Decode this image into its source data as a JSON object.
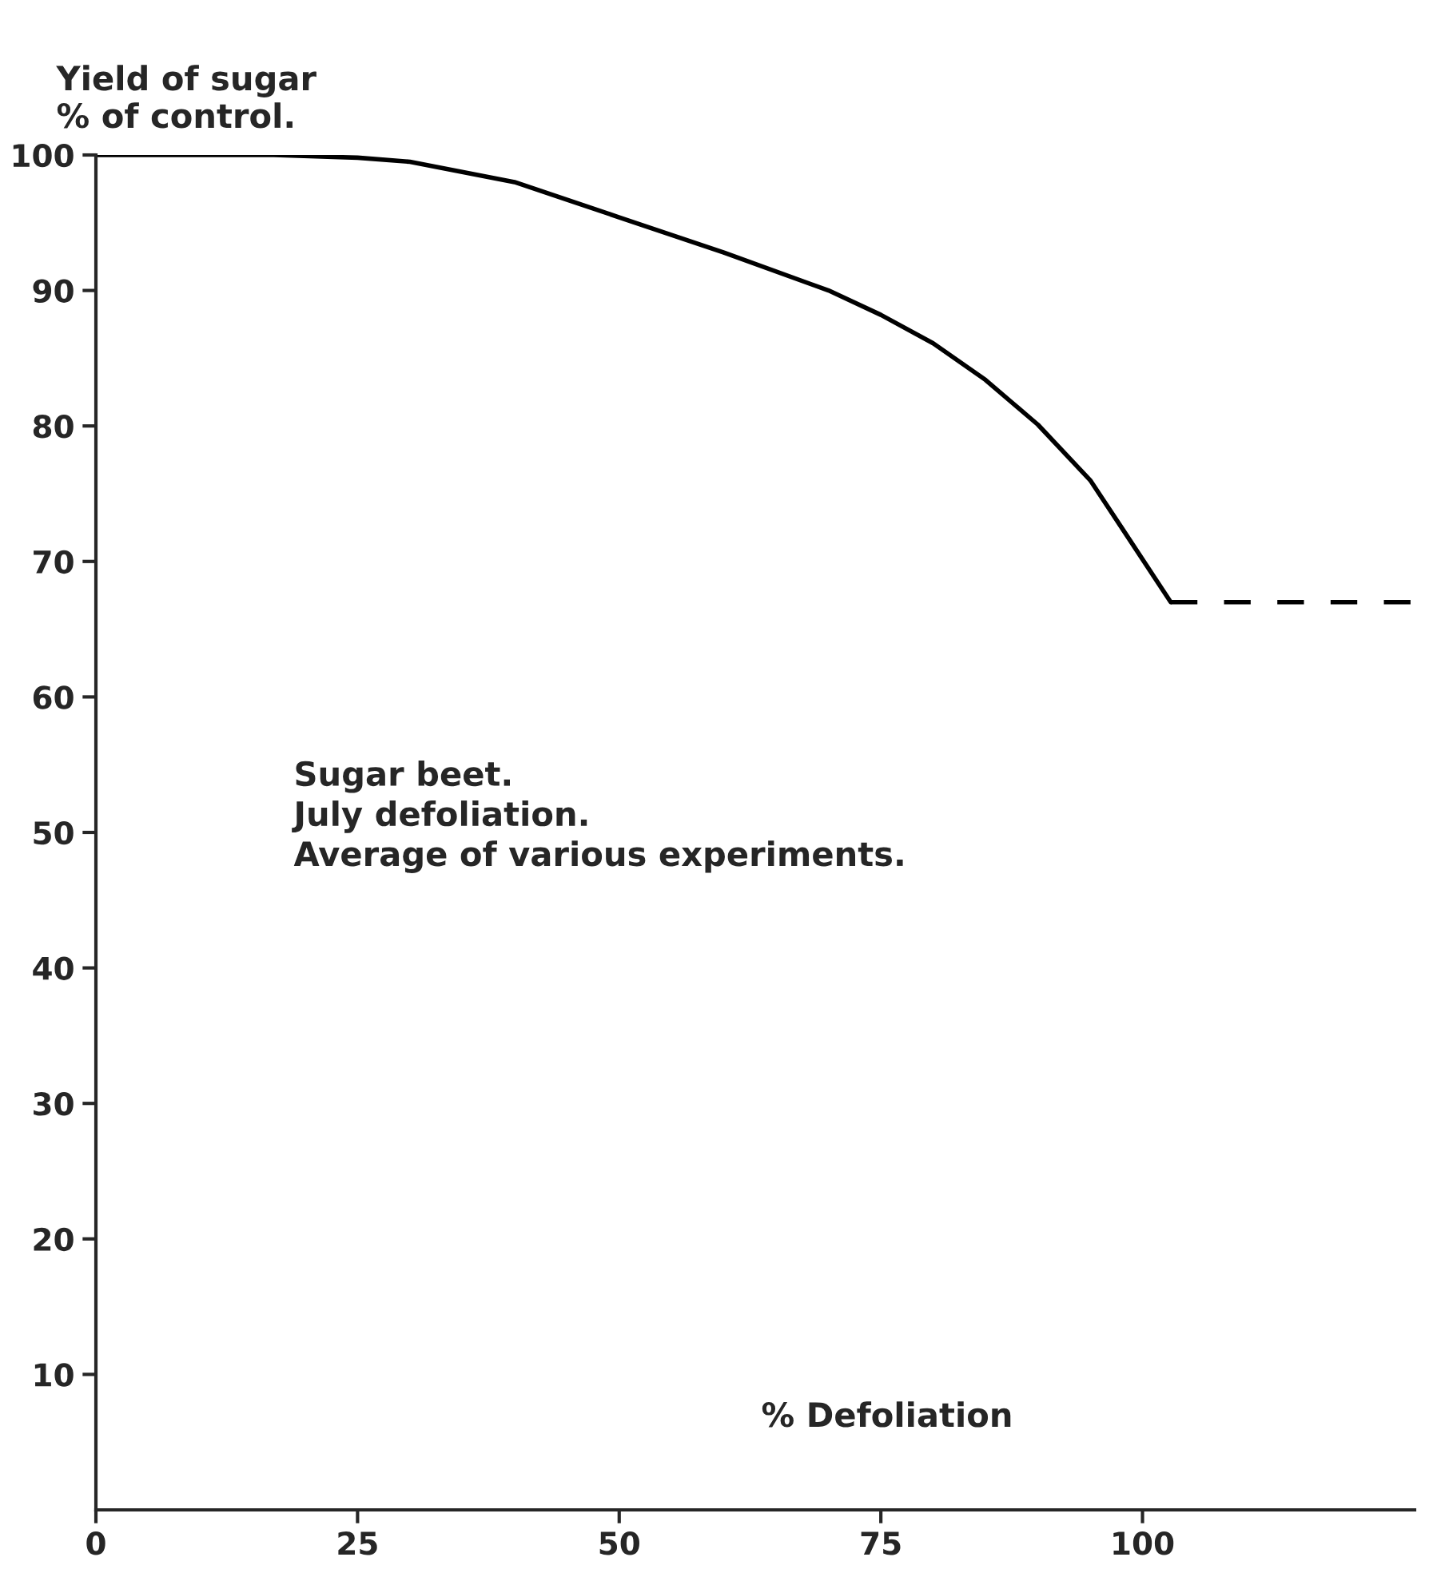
{
  "chart_data": {
    "type": "line",
    "ylabel": "Yield of sugar\n% of control.",
    "xlabel": "% Defoliation",
    "annotations": [
      "Sugar beet.\nJuly defoliation.\nAverage of various experiments."
    ],
    "series": [
      {
        "color": "#000000",
        "line_style": "solid",
        "x": [
          0,
          10,
          17,
          25,
          30,
          40,
          50,
          60,
          70,
          75,
          80,
          85,
          90,
          95,
          98,
          102.7
        ],
        "values": [
          100,
          100,
          100,
          99.8,
          99.5,
          98,
          95.4,
          92.8,
          90,
          88.2,
          86.1,
          83.4,
          80.1,
          76,
          72.5,
          67
        ]
      },
      {
        "color": "#000000",
        "line_style": "dashed",
        "x": [
          102.7,
          126
        ],
        "values": [
          67,
          67
        ]
      }
    ],
    "xlim": [
      0,
      126
    ],
    "ylim": [
      0,
      100
    ],
    "xticks": [
      0,
      25,
      50,
      75,
      100
    ],
    "yticks": [
      10,
      20,
      30,
      40,
      50,
      60,
      70,
      80,
      90,
      100
    ],
    "grid": false,
    "legend": false,
    "marker": "none"
  }
}
